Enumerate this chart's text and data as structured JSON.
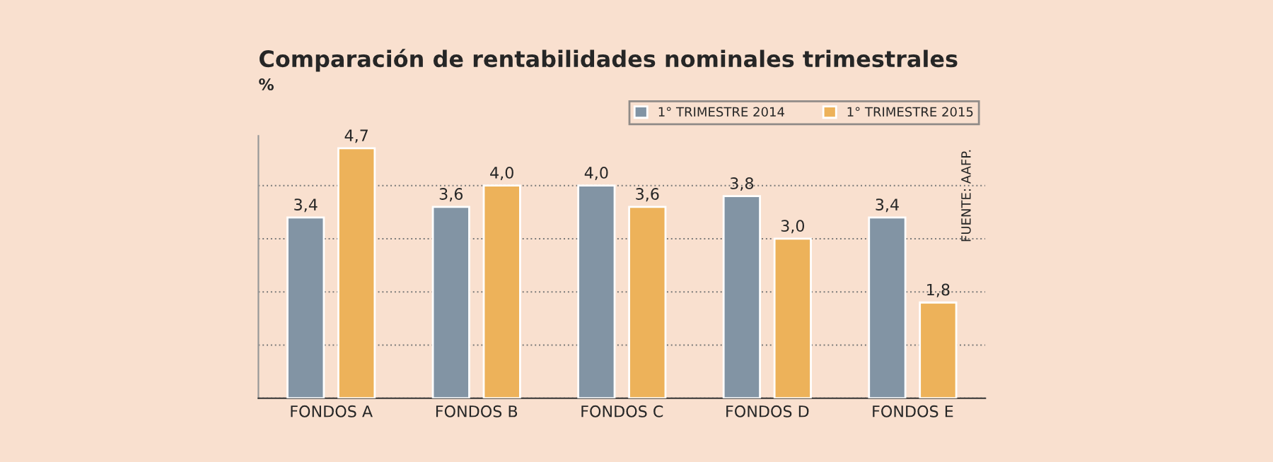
{
  "chart_data": {
    "type": "bar",
    "title": "Comparación de rentabilidades nominales trimestrales",
    "subtitle": "%",
    "categories": [
      "FONDOS A",
      "FONDOS B",
      "FONDOS C",
      "FONDOS D",
      "FONDOS E"
    ],
    "series": [
      {
        "name": "1° TRIMESTRE 2014",
        "color": "#8294a4",
        "values": [
          3.4,
          3.6,
          4.0,
          3.8,
          3.4
        ],
        "value_labels": [
          "3,4",
          "3,6",
          "4,0",
          "3,8",
          "3,4"
        ]
      },
      {
        "name": "1° TRIMESTRE 2015",
        "color": "#edb25a",
        "values": [
          4.7,
          4.0,
          3.6,
          3.0,
          1.8
        ],
        "value_labels": [
          "4,7",
          "4,0",
          "3,6",
          "3,0",
          "1,8"
        ]
      }
    ],
    "grid": "y",
    "legend": "top right",
    "tick_labels": "x",
    "annotations": [
      "FUENTE: AAFP."
    ]
  }
}
